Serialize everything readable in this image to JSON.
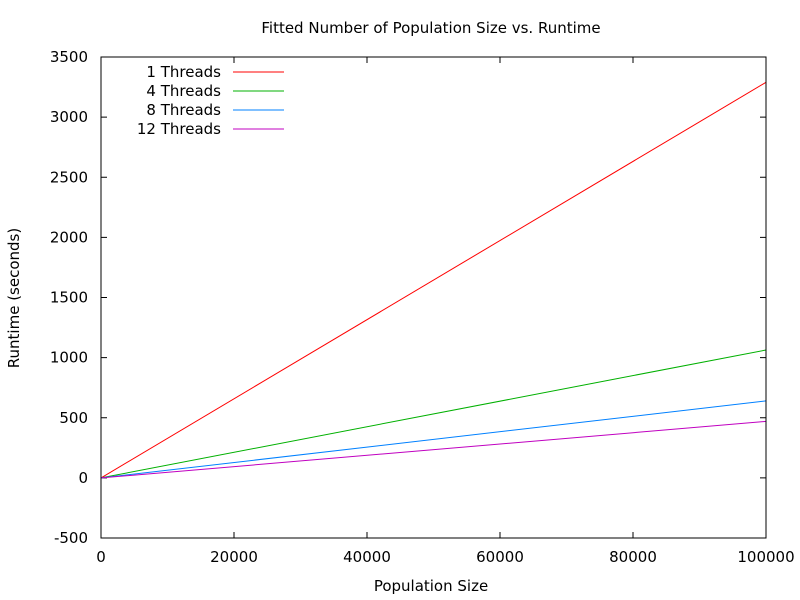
{
  "chart_data": {
    "type": "line",
    "title": "Fitted Number of Population Size vs. Runtime",
    "xlabel": "Population Size",
    "ylabel": "Runtime (seconds)",
    "xlim": [
      0,
      100000
    ],
    "ylim": [
      -500,
      3500
    ],
    "xticks": [
      0,
      20000,
      40000,
      60000,
      80000,
      100000
    ],
    "yticks": [
      -500,
      0,
      500,
      1000,
      1500,
      2000,
      2500,
      3000,
      3500
    ],
    "grid": false,
    "legend_position": "top-left",
    "series": [
      {
        "name": "1 Threads",
        "color": "#ff0000",
        "x": [
          0,
          100000
        ],
        "y": [
          0,
          3290
        ]
      },
      {
        "name": "4 Threads",
        "color": "#00b000",
        "x": [
          0,
          100000
        ],
        "y": [
          0,
          1063
        ]
      },
      {
        "name": "8 Threads",
        "color": "#0080ff",
        "x": [
          0,
          100000
        ],
        "y": [
          0,
          640
        ]
      },
      {
        "name": "12 Threads",
        "color": "#c000c0",
        "x": [
          0,
          100000
        ],
        "y": [
          0,
          470
        ]
      }
    ]
  }
}
